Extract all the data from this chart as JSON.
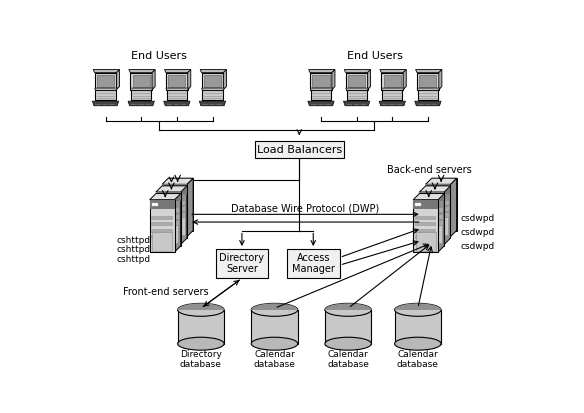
{
  "bg_color": "#ffffff",
  "end_users_left_label": "End Users",
  "end_users_right_label": "End Users",
  "load_balancer_label": "Load Balancers",
  "dwp_label": "Database Wire Protocol (DWP)",
  "frontend_label": "Front-end servers",
  "backend_label": "Back-end servers",
  "cshttpd_labels": [
    "cshttpd",
    "cshttpd",
    "cshttpd"
  ],
  "csdwpd_labels": [
    "csdwpd",
    "csdwpd",
    "csdwpd"
  ],
  "directory_server_label": "Directory\nServer",
  "access_manager_label": "Access\nManager",
  "db_labels": [
    "Directory\ndatabase",
    "Calendar\ndatabase",
    "Calendar\ndatabase",
    "Calendar\ndatabase"
  ],
  "box_facecolor": "#f0f0f0",
  "server_face_color": "#cccccc",
  "server_side_color": "#aaaaaa",
  "server_top_color": "#e8e8e8",
  "server_dark_stripe": "#888888",
  "server_mid_stripe": "#999999",
  "cyl_body_color": "#c0c0c0",
  "cyl_top_color": "#a0a0a0",
  "comp_monitor_color": "#cccccc",
  "comp_screen_color": "#aaaaaa",
  "comp_base_color": "#bbbbbb",
  "comp_keyboard_color": "#444444",
  "font_size": 7,
  "label_font_size": 8
}
